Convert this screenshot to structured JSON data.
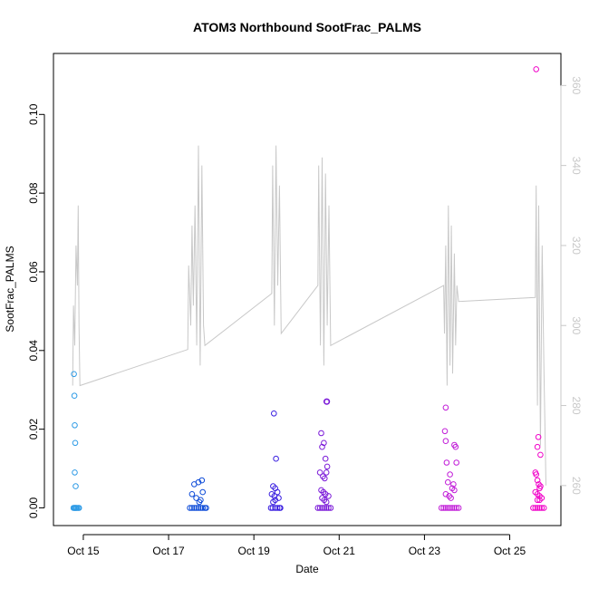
{
  "chart_data": {
    "type": "scatter",
    "title": "ATOM3 Northbound SootFrac_PALMS",
    "xlabel": "Date",
    "ylabel": "SootFrac_PALMS",
    "x_ticks": [
      "Oct 15",
      "Oct 17",
      "Oct 19",
      "Oct 21",
      "Oct 23",
      "Oct 25"
    ],
    "x_tick_days": [
      15,
      17,
      19,
      21,
      23,
      25
    ],
    "xlim_days": [
      14.3,
      26.2
    ],
    "y_ticks": [
      "0.00",
      "0.02",
      "0.04",
      "0.06",
      "0.08",
      "0.10"
    ],
    "y_tick_values": [
      0.0,
      0.02,
      0.04,
      0.06,
      0.08,
      0.1
    ],
    "ylim": [
      -0.0045,
      0.1155
    ],
    "y2_ticks": [
      "260",
      "280",
      "300",
      "320",
      "340",
      "360"
    ],
    "y2_tick_values": [
      260,
      280,
      300,
      320,
      340,
      360
    ],
    "y2lim": [
      250,
      368
    ],
    "grid": false,
    "series": [
      {
        "color": "#2E9BE6",
        "x_days": [
          14.78,
          14.79,
          14.8,
          14.81,
          14.8,
          14.82,
          14.83,
          14.77,
          14.8,
          14.82,
          14.85,
          14.88,
          14.9,
          14.79
        ],
        "values": [
          0.034,
          0.0285,
          0.021,
          0.0165,
          0.009,
          0.0055,
          0,
          0,
          0,
          0,
          0,
          0,
          0,
          0
        ]
      },
      {
        "color": "#0D4BD8",
        "x_days": [
          17.55,
          17.6,
          17.7,
          17.78,
          17.8,
          17.65,
          17.75,
          17.72,
          17.5,
          17.55,
          17.6,
          17.65,
          17.7,
          17.75,
          17.8,
          17.85,
          17.88
        ],
        "values": [
          0.0035,
          0.006,
          0.0065,
          0.007,
          0.004,
          0.0025,
          0.002,
          0.0015,
          0,
          0,
          0,
          0,
          0,
          0,
          0,
          0,
          0
        ]
      },
      {
        "color": "#3A1FE0",
        "x_days": [
          19.47,
          19.52,
          19.45,
          19.5,
          19.55,
          19.48,
          19.42,
          19.58,
          19.5,
          19.45,
          19.4,
          19.44,
          19.5,
          19.55,
          19.6,
          19.62
        ],
        "values": [
          0.024,
          0.0125,
          0.0055,
          0.005,
          0.004,
          0.003,
          0.0035,
          0.0025,
          0.002,
          0.0015,
          0,
          0,
          0,
          0,
          0,
          0
        ]
      },
      {
        "color": "#7A18D8",
        "x_days": [
          20.71,
          20.58,
          20.64,
          20.6,
          20.68,
          20.72,
          20.55,
          20.62,
          20.66,
          20.7,
          20.58,
          20.63,
          20.68,
          20.75,
          20.6,
          20.65,
          20.7,
          20.5,
          20.55,
          20.6,
          20.65,
          20.7,
          20.75,
          20.8
        ],
        "values": [
          0.027,
          0.019,
          0.0165,
          0.0155,
          0.0125,
          0.0105,
          0.009,
          0.008,
          0.0075,
          0.009,
          0.0045,
          0.004,
          0.0035,
          0.003,
          0.0025,
          0.002,
          0.0015,
          0,
          0,
          0,
          0,
          0,
          0,
          0
        ],
        "emphasis_index": 0
      },
      {
        "color": "#C11CD8",
        "x_days": [
          23.5,
          23.48,
          23.5,
          23.7,
          23.73,
          23.52,
          23.75,
          23.6,
          23.55,
          23.68,
          23.65,
          23.7,
          23.5,
          23.58,
          23.62,
          23.4,
          23.45,
          23.5,
          23.55,
          23.6,
          23.65,
          23.7,
          23.75,
          23.8
        ],
        "values": [
          0.0255,
          0.0195,
          0.017,
          0.016,
          0.0155,
          0.0115,
          0.0115,
          0.0085,
          0.0065,
          0.006,
          0.005,
          0.0045,
          0.0035,
          0.003,
          0.0025,
          0,
          0,
          0,
          0,
          0,
          0,
          0,
          0,
          0
        ]
      },
      {
        "color": "#F000C8",
        "x_days": [
          25.62,
          25.67,
          25.65,
          25.72,
          25.6,
          25.62,
          25.65,
          25.68,
          25.72,
          25.7,
          25.6,
          25.65,
          25.7,
          25.75,
          25.65,
          25.7,
          25.55,
          25.6,
          25.65,
          25.7,
          25.75,
          25.8
        ],
        "values": [
          0.1115,
          0.018,
          0.0155,
          0.0135,
          0.009,
          0.0085,
          0.007,
          0.006,
          0.0055,
          0.005,
          0.004,
          0.0035,
          0.003,
          0.0025,
          0.002,
          0.002,
          0,
          0,
          0,
          0,
          0,
          0
        ]
      }
    ],
    "background_line": {
      "color": "#c8c8c8",
      "axis": "right",
      "x_days": [
        14.75,
        14.77,
        14.8,
        14.83,
        14.86,
        14.88,
        14.9,
        14.92,
        17.45,
        17.47,
        17.52,
        17.55,
        17.58,
        17.62,
        17.66,
        17.7,
        17.74,
        17.78,
        17.82,
        17.85,
        19.42,
        19.44,
        19.48,
        19.52,
        19.56,
        19.6,
        19.64,
        20.5,
        20.52,
        20.56,
        20.6,
        20.64,
        20.68,
        20.72,
        20.76,
        20.8,
        23.45,
        23.47,
        23.5,
        23.53,
        23.56,
        23.6,
        23.63,
        23.66,
        23.7,
        23.73,
        23.76,
        23.8,
        25.6,
        25.62,
        25.65,
        25.68,
        25.72,
        25.76,
        25.8,
        25.85
      ],
      "values": [
        285,
        305,
        295,
        320,
        310,
        330,
        300,
        285,
        294,
        315,
        300,
        325,
        305,
        330,
        295,
        345,
        290,
        340,
        300,
        295,
        308,
        340,
        300,
        345,
        310,
        335,
        298,
        310,
        340,
        295,
        342,
        290,
        338,
        300,
        330,
        295,
        310,
        298,
        320,
        285,
        330,
        290,
        325,
        288,
        318,
        295,
        310,
        306,
        307,
        335,
        280,
        330,
        270,
        320,
        290,
        260
      ]
    }
  }
}
